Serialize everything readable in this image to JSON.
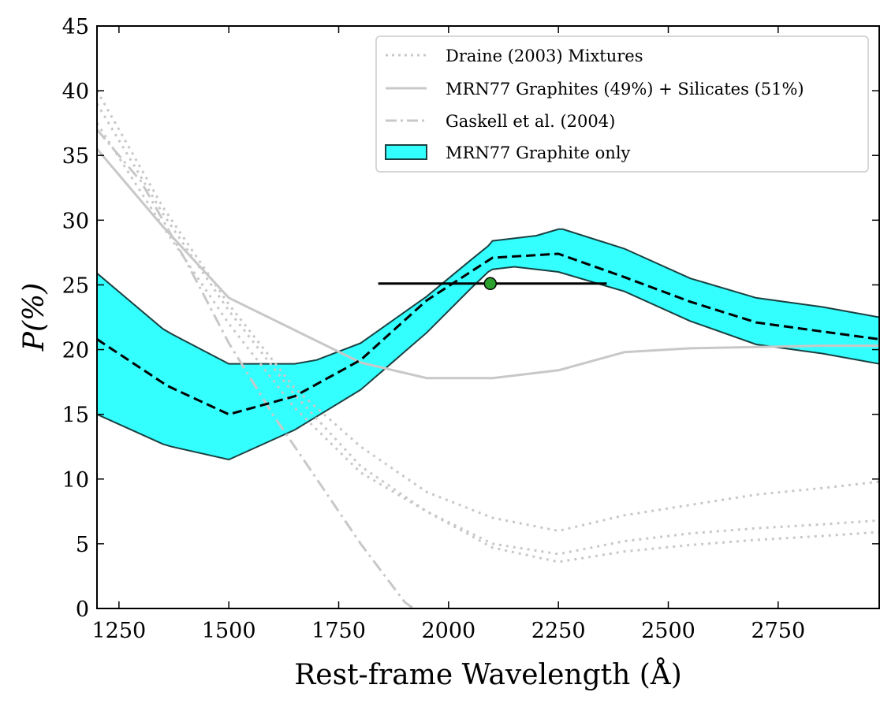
{
  "chart_data": {
    "type": "line",
    "xlabel": "Rest-frame Wavelength (Å)",
    "ylabel": "P(%)",
    "xlim": [
      1200,
      2980
    ],
    "ylim": [
      0,
      45
    ],
    "x_ticks": [
      1250,
      1500,
      1750,
      2000,
      2250,
      2500,
      2750
    ],
    "y_ticks": [
      0,
      5,
      10,
      15,
      20,
      25,
      30,
      35,
      40,
      45
    ],
    "grid": false,
    "legend_position": "top-right",
    "legend": [
      {
        "label": "Draine (2003) Mixtures",
        "style": "dotted",
        "color": "#c8c8c8"
      },
      {
        "label": "MRN77 Graphites (49%) + Silicates (51%)",
        "style": "solid",
        "color": "#c8c8c8"
      },
      {
        "label": "Gaskell et al. (2004)",
        "style": "dashdot",
        "color": "#c8c8c8"
      },
      {
        "label": "MRN77 Graphite only",
        "style": "patch",
        "color": "#33ffff",
        "edge": "#1a4040"
      }
    ],
    "series": [
      {
        "name": "Draine (2003) Mixtures",
        "style": "dotted",
        "color": "#c8c8c8",
        "x": [
          1200,
          1350,
          1500,
          1650,
          1800,
          1950,
          2100,
          2250,
          2400,
          2550,
          2700,
          2850,
          2980
        ],
        "y": [
          40.0,
          31.0,
          23.5,
          17.0,
          12.5,
          9.0,
          7.0,
          6.0,
          7.2,
          8.0,
          8.8,
          9.3,
          9.8
        ]
      },
      {
        "name": "",
        "style": "dotted",
        "color": "#c8c8c8",
        "x": [
          1200,
          1350,
          1500,
          1650,
          1800,
          1950,
          2100,
          2250,
          2400,
          2550,
          2700,
          2850,
          2980
        ],
        "y": [
          37.5,
          29.5,
          22.0,
          15.5,
          10.5,
          7.5,
          5.0,
          4.2,
          5.2,
          5.8,
          6.2,
          6.5,
          6.8
        ]
      },
      {
        "name": "",
        "style": "dotted",
        "color": "#c8c8c8",
        "x": [
          1200,
          1350,
          1500,
          1650,
          1800,
          1950,
          2100,
          2250,
          2400,
          2550,
          2700,
          2850,
          2980
        ],
        "y": [
          39.0,
          30.5,
          23.0,
          16.5,
          11.0,
          7.5,
          4.7,
          3.6,
          4.4,
          4.9,
          5.3,
          5.6,
          5.9
        ]
      },
      {
        "name": "MRN77 Graphites (49%) + Silicates (51%)",
        "style": "solid",
        "color": "#c8c8c8",
        "x": [
          1200,
          1350,
          1500,
          1650,
          1800,
          1950,
          2100,
          2250,
          2400,
          2550,
          2700,
          2850,
          2980
        ],
        "y": [
          35.5,
          29.5,
          24.0,
          21.5,
          19.0,
          17.8,
          17.8,
          18.4,
          19.8,
          20.1,
          20.2,
          20.3,
          20.3
        ]
      },
      {
        "name": "Gaskell et al. (2004)",
        "style": "dashdot",
        "color": "#c8c8c8",
        "x": [
          1200,
          1300,
          1400,
          1500,
          1600,
          1700,
          1800,
          1900,
          1920
        ],
        "y": [
          37.0,
          33.0,
          27.0,
          20.5,
          15.0,
          10.0,
          5.0,
          0.5,
          0.0
        ]
      },
      {
        "name": "",
        "style": "dashed",
        "color": "#000000",
        "x": [
          1200,
          1360,
          1500,
          1650,
          1800,
          1950,
          2050,
          2100,
          2250,
          2400,
          2550,
          2700,
          2850,
          2980
        ],
        "y": [
          20.8,
          17.2,
          15.0,
          16.4,
          19.2,
          23.8,
          26.0,
          27.1,
          27.4,
          25.6,
          23.7,
          22.1,
          21.4,
          20.8
        ]
      }
    ],
    "band": {
      "name": "MRN77 Graphite only",
      "color": "#33ffff",
      "edge": "#1a4040",
      "upper": {
        "x": [
          1200,
          1350,
          1370,
          1500,
          1600,
          1650,
          1700,
          1800,
          1950,
          2050,
          2090,
          2100,
          2200,
          2250,
          2260,
          2400,
          2550,
          2700,
          2850,
          2980
        ],
        "y": [
          25.9,
          21.6,
          21.2,
          18.9,
          18.9,
          18.9,
          19.2,
          20.5,
          24.1,
          26.9,
          28.0,
          28.4,
          28.8,
          29.3,
          29.3,
          27.8,
          25.5,
          24.0,
          23.3,
          22.5
        ]
      },
      "lower": {
        "x": [
          1200,
          1350,
          1370,
          1500,
          1650,
          1800,
          1950,
          2050,
          2090,
          2100,
          2150,
          2250,
          2400,
          2550,
          2700,
          2850,
          2980
        ],
        "y": [
          15.0,
          12.7,
          12.5,
          11.5,
          13.8,
          16.9,
          21.3,
          24.7,
          26.0,
          26.2,
          26.4,
          26.0,
          24.5,
          22.2,
          20.4,
          19.7,
          18.9
        ]
      }
    },
    "observation": {
      "x": 2095,
      "y": 25.1,
      "xerr_low": 1840,
      "xerr_high": 2360,
      "yerr": 0.4,
      "marker_color": "#2ca02c",
      "errorbar_color": "#000000"
    }
  }
}
